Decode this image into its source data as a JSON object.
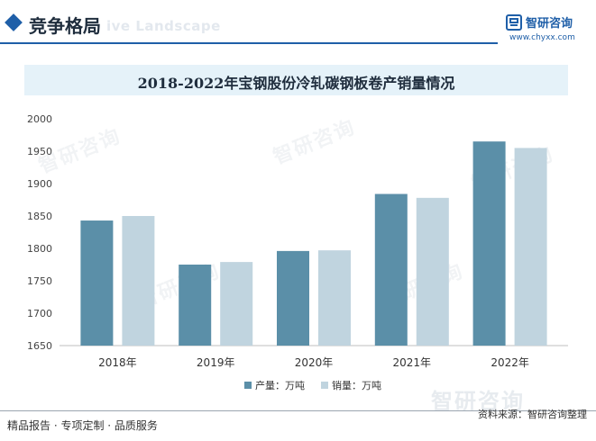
{
  "header": {
    "title": "竞争格局",
    "ghost_text": "ive Landscape",
    "accent_color": "#1f5fa8"
  },
  "brand": {
    "name": "智研咨询",
    "url": "www.chyxx.com",
    "icon": "chyxx-logo-icon",
    "color": "#1f5fa8"
  },
  "watermark_text": "智研咨询",
  "chart_data": {
    "type": "bar",
    "title": "2018-2022年宝钢股份冷轧碳钢板卷产销量情况",
    "categories": [
      "2018年",
      "2019年",
      "2020年",
      "2021年",
      "2022年"
    ],
    "series": [
      {
        "name": "产量：万吨",
        "values": [
          1843,
          1775,
          1796,
          1884,
          1965
        ],
        "color": "#5b8fa8"
      },
      {
        "name": "销量：万吨",
        "values": [
          1850,
          1779,
          1797,
          1878,
          1955
        ],
        "color": "#c0d4df"
      }
    ],
    "yticks": [
      1650,
      1700,
      1750,
      1800,
      1850,
      1900,
      1950,
      2000
    ],
    "ylim": [
      1650,
      2000
    ],
    "legend_position": "bottom",
    "grid": false
  },
  "footer": {
    "left": "精品报告 · 专项定制 · 品质服务",
    "right": "资料来源：智研咨询整理"
  }
}
